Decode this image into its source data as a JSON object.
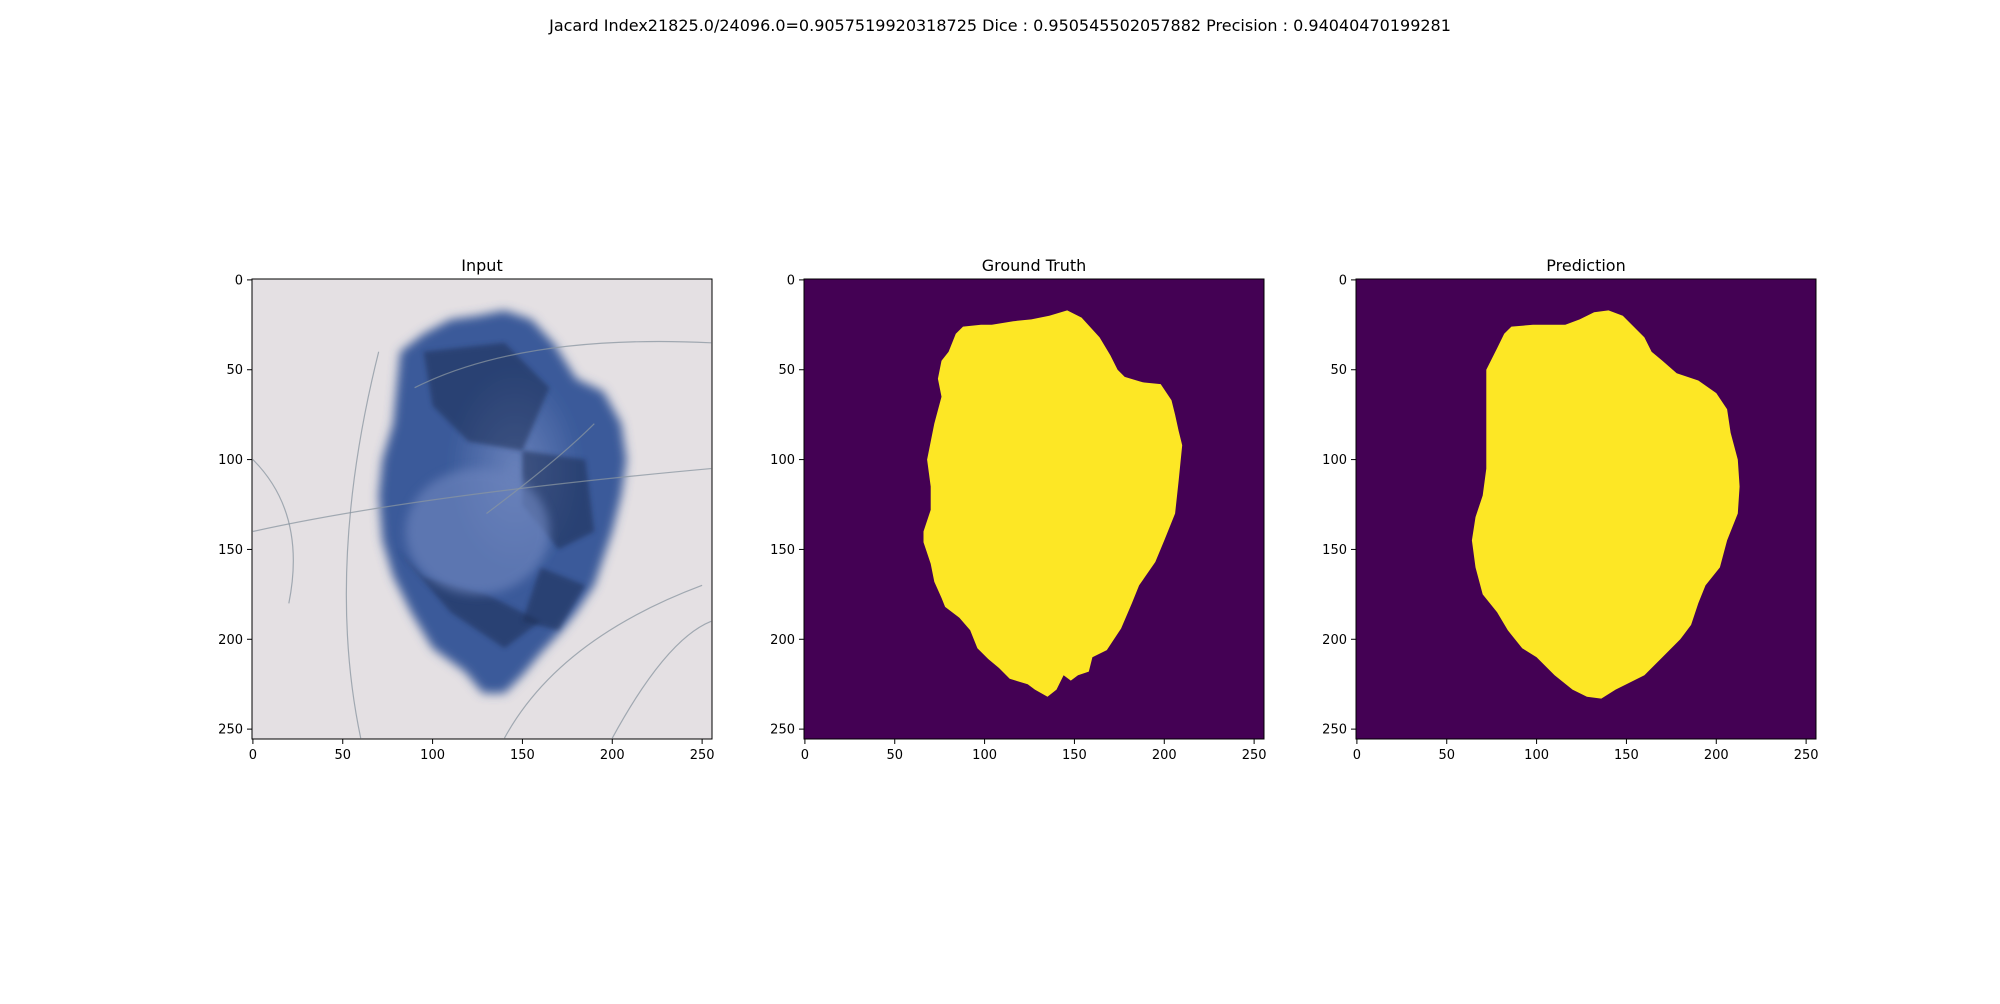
{
  "figure": {
    "suptitle": "Jacard Index21825.0/24096.0=0.9057519920318725 Dice : 0.950545502057882 Precision : 0.94040470199281"
  },
  "colors": {
    "mask_background": "#440154",
    "mask_foreground": "#fde725",
    "skin_light": "#e4e0e3",
    "lesion_light": "#6a82bb",
    "lesion_mid": "#3a5a9a",
    "lesion_dark": "#1f2f55",
    "axis": "#000000"
  },
  "chart_data": [
    {
      "type": "image",
      "name": "input",
      "title": "Input",
      "content": "dermoscopy image of a blue pigmented skin lesion with hairs",
      "xlim": [
        0,
        255
      ],
      "ylim": [
        255,
        0
      ],
      "xticks": [
        0,
        50,
        100,
        150,
        200,
        250
      ],
      "yticks": [
        0,
        50,
        100,
        150,
        200,
        250
      ],
      "lesion_outline": [
        [
          140,
          17
        ],
        [
          155,
          22
        ],
        [
          168,
          36
        ],
        [
          180,
          55
        ],
        [
          195,
          62
        ],
        [
          205,
          80
        ],
        [
          208,
          100
        ],
        [
          205,
          120
        ],
        [
          200,
          140
        ],
        [
          195,
          155
        ],
        [
          190,
          170
        ],
        [
          180,
          185
        ],
        [
          172,
          195
        ],
        [
          160,
          208
        ],
        [
          150,
          220
        ],
        [
          140,
          230
        ],
        [
          128,
          230
        ],
        [
          118,
          218
        ],
        [
          100,
          205
        ],
        [
          88,
          185
        ],
        [
          78,
          165
        ],
        [
          72,
          145
        ],
        [
          70,
          120
        ],
        [
          72,
          100
        ],
        [
          78,
          80
        ],
        [
          80,
          60
        ],
        [
          82,
          40
        ],
        [
          95,
          30
        ],
        [
          110,
          22
        ],
        [
          125,
          20
        ]
      ]
    },
    {
      "type": "image",
      "name": "ground-truth",
      "title": "Ground Truth",
      "colormap": "viridis",
      "xlim": [
        0,
        255
      ],
      "ylim": [
        255,
        0
      ],
      "xticks": [
        0,
        50,
        100,
        150,
        200,
        250
      ],
      "yticks": [
        0,
        50,
        100,
        150,
        200,
        250
      ],
      "mask_outline": [
        [
          84,
          30
        ],
        [
          88,
          26
        ],
        [
          98,
          25
        ],
        [
          104,
          25
        ],
        [
          116,
          23
        ],
        [
          126,
          22
        ],
        [
          136,
          20
        ],
        [
          146,
          17
        ],
        [
          154,
          21
        ],
        [
          164,
          32
        ],
        [
          170,
          42
        ],
        [
          174,
          50
        ],
        [
          178,
          54
        ],
        [
          188,
          57
        ],
        [
          198,
          58
        ],
        [
          204,
          67
        ],
        [
          206,
          75
        ],
        [
          208,
          84
        ],
        [
          210,
          92
        ],
        [
          208,
          112
        ],
        [
          206,
          130
        ],
        [
          200,
          145
        ],
        [
          195,
          157
        ],
        [
          186,
          170
        ],
        [
          182,
          180
        ],
        [
          176,
          194
        ],
        [
          168,
          206
        ],
        [
          160,
          210
        ],
        [
          158,
          218
        ],
        [
          152,
          220
        ],
        [
          148,
          223
        ],
        [
          144,
          220
        ],
        [
          140,
          228
        ],
        [
          135,
          232
        ],
        [
          128,
          228
        ],
        [
          124,
          225
        ],
        [
          114,
          222
        ],
        [
          108,
          216
        ],
        [
          102,
          211
        ],
        [
          96,
          205
        ],
        [
          92,
          195
        ],
        [
          86,
          188
        ],
        [
          78,
          182
        ],
        [
          76,
          177
        ],
        [
          72,
          168
        ],
        [
          70,
          158
        ],
        [
          66,
          146
        ],
        [
          66,
          140
        ],
        [
          70,
          128
        ],
        [
          70,
          115
        ],
        [
          68,
          100
        ],
        [
          70,
          90
        ],
        [
          72,
          80
        ],
        [
          76,
          65
        ],
        [
          74,
          55
        ],
        [
          76,
          45
        ],
        [
          80,
          40
        ]
      ]
    },
    {
      "type": "image",
      "name": "prediction",
      "title": "Prediction",
      "colormap": "viridis",
      "xlim": [
        0,
        255
      ],
      "ylim": [
        255,
        0
      ],
      "xticks": [
        0,
        50,
        100,
        150,
        200,
        250
      ],
      "yticks": [
        0,
        50,
        100,
        150,
        200,
        250
      ],
      "mask_outline": [
        [
          78,
          38
        ],
        [
          82,
          30
        ],
        [
          86,
          26
        ],
        [
          98,
          25
        ],
        [
          116,
          25
        ],
        [
          124,
          22
        ],
        [
          132,
          18
        ],
        [
          140,
          17
        ],
        [
          148,
          20
        ],
        [
          160,
          32
        ],
        [
          164,
          40
        ],
        [
          170,
          45
        ],
        [
          178,
          52
        ],
        [
          190,
          56
        ],
        [
          200,
          63
        ],
        [
          206,
          72
        ],
        [
          208,
          85
        ],
        [
          212,
          100
        ],
        [
          213,
          115
        ],
        [
          212,
          130
        ],
        [
          206,
          145
        ],
        [
          202,
          160
        ],
        [
          194,
          170
        ],
        [
          190,
          180
        ],
        [
          186,
          192
        ],
        [
          180,
          200
        ],
        [
          170,
          210
        ],
        [
          160,
          220
        ],
        [
          150,
          225
        ],
        [
          144,
          228
        ],
        [
          136,
          233
        ],
        [
          128,
          232
        ],
        [
          120,
          228
        ],
        [
          110,
          220
        ],
        [
          100,
          210
        ],
        [
          92,
          205
        ],
        [
          84,
          195
        ],
        [
          78,
          185
        ],
        [
          70,
          175
        ],
        [
          66,
          160
        ],
        [
          64,
          145
        ],
        [
          66,
          132
        ],
        [
          70,
          120
        ],
        [
          72,
          105
        ],
        [
          72,
          90
        ],
        [
          72,
          70
        ],
        [
          72,
          50
        ]
      ]
    }
  ]
}
